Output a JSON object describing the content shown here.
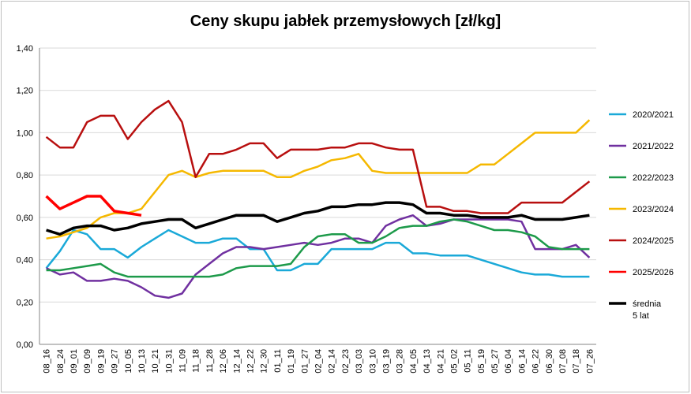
{
  "chart_data": {
    "type": "line",
    "title": "Ceny skupu jabłek przemysłowych [zł/kg]",
    "xlabel": "",
    "ylabel": "",
    "ylim": [
      0,
      1.4
    ],
    "y_ticks": [
      "0,00",
      "0,20",
      "0,40",
      "0,60",
      "0,80",
      "1,00",
      "1,20",
      "1,40"
    ],
    "grid": "horizontal",
    "legend_position": "right",
    "categories": [
      "08_16",
      "08_24",
      "09_01",
      "09_09",
      "09_19",
      "09_27",
      "10_05",
      "10_13",
      "10_21",
      "10_31",
      "11_09",
      "11_18",
      "11_28",
      "12_06",
      "12_14",
      "12_22",
      "12_30",
      "01_11",
      "01_19",
      "01_27",
      "02_04",
      "02_14",
      "02_23",
      "03_03",
      "03_10",
      "03_19",
      "03_28",
      "04_05",
      "04_13",
      "04_21",
      "05_02",
      "05_11",
      "05_19",
      "05_27",
      "06_04",
      "06_14",
      "06_22",
      "06_30",
      "07_08",
      "07_18",
      "07_26"
    ],
    "series": [
      {
        "name": "2020/2021",
        "color": "#1aa9d8",
        "values": [
          0.36,
          0.44,
          0.54,
          0.52,
          0.45,
          0.45,
          0.41,
          0.46,
          0.5,
          0.54,
          0.51,
          0.48,
          0.48,
          0.5,
          0.5,
          0.45,
          0.45,
          0.35,
          0.35,
          0.38,
          0.38,
          0.45,
          0.45,
          0.45,
          0.45,
          0.48,
          0.48,
          0.43,
          0.43,
          0.42,
          0.42,
          0.42,
          0.4,
          0.38,
          0.36,
          0.34,
          0.33,
          0.33,
          0.32,
          0.32,
          0.32
        ]
      },
      {
        "name": "2021/2022",
        "color": "#7030a0",
        "values": [
          0.36,
          0.33,
          0.34,
          0.3,
          0.3,
          0.31,
          0.3,
          0.27,
          0.23,
          0.22,
          0.24,
          0.33,
          0.38,
          0.43,
          0.46,
          0.46,
          0.45,
          0.46,
          0.47,
          0.48,
          0.47,
          0.48,
          0.5,
          0.5,
          0.48,
          0.56,
          0.59,
          0.61,
          0.56,
          0.57,
          0.59,
          0.59,
          0.59,
          0.59,
          0.59,
          0.58,
          0.45,
          0.45,
          0.45,
          0.47,
          0.41
        ]
      },
      {
        "name": "2022/2023",
        "color": "#1d9a4a",
        "values": [
          0.35,
          0.35,
          0.36,
          0.37,
          0.38,
          0.34,
          0.32,
          0.32,
          0.32,
          0.32,
          0.32,
          0.32,
          0.32,
          0.33,
          0.36,
          0.37,
          0.37,
          0.37,
          0.38,
          0.46,
          0.51,
          0.52,
          0.52,
          0.48,
          0.48,
          0.51,
          0.55,
          0.56,
          0.56,
          0.58,
          0.59,
          0.58,
          0.56,
          0.54,
          0.54,
          0.53,
          0.51,
          0.46,
          0.45,
          0.45,
          0.45
        ]
      },
      {
        "name": "2023/2024",
        "color": "#f5b800",
        "values": [
          0.5,
          0.51,
          0.53,
          0.55,
          0.6,
          0.62,
          0.62,
          0.64,
          0.72,
          0.8,
          0.82,
          0.79,
          0.81,
          0.82,
          0.82,
          0.82,
          0.82,
          0.79,
          0.79,
          0.82,
          0.84,
          0.87,
          0.88,
          0.9,
          0.82,
          0.81,
          0.81,
          0.81,
          0.81,
          0.81,
          0.81,
          0.81,
          0.85,
          0.85,
          0.9,
          0.95,
          1.0,
          1.0,
          1.0,
          1.0,
          1.06
        ]
      },
      {
        "name": "2024/2025",
        "color": "#b80f0f",
        "values": [
          0.98,
          0.93,
          0.93,
          1.05,
          1.08,
          1.08,
          0.97,
          1.05,
          1.11,
          1.15,
          1.05,
          0.79,
          0.9,
          0.9,
          0.92,
          0.95,
          0.95,
          0.88,
          0.92,
          0.92,
          0.92,
          0.93,
          0.93,
          0.95,
          0.95,
          0.93,
          0.92,
          0.92,
          0.65,
          0.65,
          0.63,
          0.63,
          0.62,
          0.62,
          0.62,
          0.67,
          0.67,
          0.67,
          0.67,
          0.72,
          0.77
        ]
      },
      {
        "name": "2025/2026",
        "color": "#ff0000",
        "values": [
          0.7,
          0.64,
          0.67,
          0.7,
          0.7,
          0.63,
          0.62,
          0.61,
          null,
          null,
          null,
          null,
          null,
          null,
          null,
          null,
          null,
          null,
          null,
          null,
          null,
          null,
          null,
          null,
          null,
          null,
          null,
          null,
          null,
          null,
          null,
          null,
          null,
          null,
          null,
          null,
          null,
          null,
          null,
          null,
          null
        ]
      },
      {
        "name": "średnia 5 lat",
        "color": "#000000",
        "values": [
          0.54,
          0.52,
          0.55,
          0.56,
          0.56,
          0.54,
          0.55,
          0.57,
          0.58,
          0.59,
          0.59,
          0.55,
          0.57,
          0.59,
          0.61,
          0.61,
          0.61,
          0.58,
          0.6,
          0.62,
          0.63,
          0.65,
          0.65,
          0.66,
          0.66,
          0.67,
          0.67,
          0.66,
          0.62,
          0.62,
          0.61,
          0.61,
          0.6,
          0.6,
          0.6,
          0.61,
          0.59,
          0.59,
          0.59,
          0.6,
          0.61
        ]
      }
    ]
  }
}
